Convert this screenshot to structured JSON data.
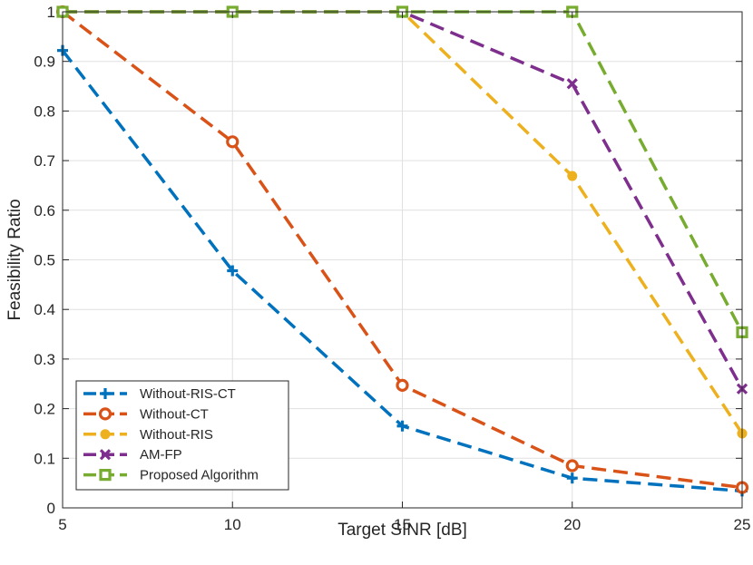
{
  "chart_data": {
    "type": "line",
    "title": "",
    "xlabel": "Target SINR [dB]",
    "ylabel": "Feasibility Ratio",
    "xlim": [
      5,
      25
    ],
    "ylim": [
      0,
      1
    ],
    "xticks": [
      5,
      10,
      15,
      20,
      25
    ],
    "yticks": [
      0,
      0.1,
      0.2,
      0.3,
      0.4,
      0.5,
      0.6,
      0.7,
      0.8,
      0.9,
      1
    ],
    "xtick_labels": [
      "5",
      "10",
      "15",
      "20",
      "25"
    ],
    "ytick_labels": [
      "0",
      "0.1",
      "0.2",
      "0.3",
      "0.4",
      "0.5",
      "0.6",
      "0.7",
      "0.8",
      "0.9",
      "1"
    ],
    "grid": true,
    "legend_position": "bottom-left",
    "x": [
      5,
      10,
      15,
      20,
      25
    ],
    "series": [
      {
        "name": "Without-RIS-CT",
        "color": "#0072BD",
        "marker": "plus",
        "values": [
          0.922,
          0.478,
          0.165,
          0.06,
          0.034
        ]
      },
      {
        "name": "Without-CT",
        "color": "#D95319",
        "marker": "circle",
        "values": [
          1.0,
          0.738,
          0.247,
          0.085,
          0.041
        ]
      },
      {
        "name": "Without-RIS",
        "color": "#EDB120",
        "marker": "dot",
        "values": [
          1.0,
          1.0,
          1.0,
          0.669,
          0.15
        ]
      },
      {
        "name": "AM-FP",
        "color": "#7E2F8E",
        "marker": "x",
        "values": [
          1.0,
          1.0,
          1.0,
          0.855,
          0.24
        ]
      },
      {
        "name": "Proposed Algorithm",
        "color": "#77AC30",
        "marker": "square",
        "values": [
          1.0,
          1.0,
          1.0,
          1.0,
          0.354
        ]
      }
    ]
  }
}
